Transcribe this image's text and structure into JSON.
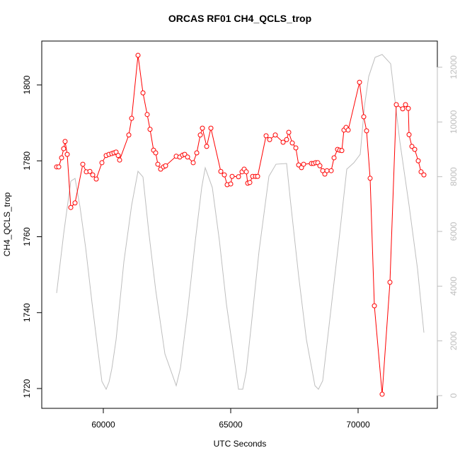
{
  "chart_data": {
    "type": "line",
    "title": "ORCAS RF01 CH4_QCLS_trop",
    "x_label": "UTC Seconds",
    "y_label": "CH4_QCLS_trop",
    "xlim": [
      57583,
      73111
    ],
    "xticks": [
      60000,
      65000,
      70000
    ],
    "ylim": [
      1714.78,
      1811.56
    ],
    "yticks": [
      1720,
      1740,
      1760,
      1780,
      1800
    ],
    "y2lim": [
      -465,
      12957
    ],
    "y2ticks": [
      0,
      2000,
      4000,
      6000,
      8000,
      10000,
      12000
    ],
    "series": [
      {
        "name": "CH4_QCLS_trop",
        "color": "#ff0000",
        "markers": true,
        "x": [
          58167,
          58250,
          58361,
          58444,
          58500,
          58583,
          58722,
          58889,
          59194,
          59333,
          59472,
          59583,
          59722,
          59944,
          60111,
          60222,
          60333,
          60417,
          60500,
          60583,
          60639,
          61000,
          61111,
          61361,
          61556,
          61722,
          61833,
          61972,
          62056,
          62139,
          62250,
          62361,
          62444,
          62861,
          63000,
          63111,
          63194,
          63306,
          63528,
          63667,
          63806,
          63889,
          64056,
          64222,
          64611,
          64750,
          64861,
          65000,
          65056,
          65306,
          65444,
          65528,
          65611,
          65667,
          65750,
          65861,
          65972,
          66056,
          66389,
          66528,
          66750,
          67056,
          67194,
          67278,
          67417,
          67556,
          67667,
          67778,
          67861,
          68167,
          68250,
          68333,
          68417,
          68500,
          68611,
          68694,
          68778,
          68944,
          69056,
          69194,
          69278,
          69361,
          69444,
          69528,
          69611,
          70056,
          70222,
          70333,
          70472,
          70639,
          70944,
          71250,
          71500,
          71750,
          71861,
          71972,
          72000,
          72111,
          72222,
          72361,
          72472,
          72583
        ],
        "values": [
          1778.4,
          1778.4,
          1780.8,
          1783.2,
          1785.1,
          1781.7,
          1767.7,
          1768.9,
          1779.1,
          1777.1,
          1777.2,
          1776.3,
          1775.2,
          1779.5,
          1781.4,
          1781.7,
          1781.9,
          1782.1,
          1782.3,
          1781.4,
          1780.2,
          1786.8,
          1791.2,
          1807.8,
          1797.9,
          1792.2,
          1788.3,
          1782.8,
          1782.1,
          1779.1,
          1777.8,
          1778.4,
          1778.7,
          1781.2,
          1781.0,
          1781.5,
          1781.7,
          1781.0,
          1779.5,
          1782.1,
          1786.8,
          1788.6,
          1783.8,
          1788.6,
          1777.2,
          1776.3,
          1773.7,
          1773.9,
          1775.9,
          1775.8,
          1777.1,
          1777.8,
          1777.1,
          1774.1,
          1774.3,
          1775.9,
          1775.9,
          1775.9,
          1786.6,
          1785.6,
          1786.8,
          1784.9,
          1785.6,
          1787.5,
          1784.7,
          1783.4,
          1778.9,
          1778.2,
          1779.1,
          1779.3,
          1779.3,
          1779.5,
          1779.5,
          1778.7,
          1777.4,
          1776.5,
          1777.4,
          1777.4,
          1780.8,
          1783.0,
          1782.8,
          1782.7,
          1788.1,
          1788.8,
          1788.1,
          1800.7,
          1791.6,
          1787.9,
          1775.4,
          1741.8,
          1718.5,
          1748.0,
          1794.8,
          1793.7,
          1794.8,
          1793.8,
          1786.9,
          1783.8,
          1783.0,
          1780.0,
          1777.1,
          1776.3
        ]
      },
      {
        "color": "#bebebe",
        "axis": "y2",
        "markers": false,
        "x": [
          58167,
          58444,
          58722,
          58889,
          59083,
          59306,
          59556,
          59806,
          59944,
          60111,
          60222,
          60333,
          60500,
          60806,
          61111,
          61361,
          61556,
          61778,
          62056,
          62417,
          62861,
          63028,
          63306,
          63611,
          63861,
          64000,
          64278,
          64556,
          64833,
          65111,
          65306,
          65472,
          65611,
          65806,
          66111,
          66500,
          66778,
          67194,
          67333,
          67667,
          67972,
          68306,
          68444,
          68611,
          68861,
          69278,
          69556,
          69833,
          70083,
          70250,
          70417,
          70667,
          70944,
          71278,
          71639,
          72000,
          72333,
          72583
        ],
        "values": [
          3750,
          5922,
          7836,
          7939,
          6905,
          5405,
          3388,
          1526,
          517,
          233,
          491,
          983,
          2043,
          4888,
          6957,
          8198,
          7991,
          6025,
          3853,
          1526,
          362,
          1009,
          3077,
          5663,
          7603,
          8327,
          7603,
          5663,
          3336,
          1526,
          233,
          233,
          879,
          2560,
          5275,
          8017,
          8456,
          8482,
          7215,
          4370,
          2043,
          362,
          233,
          543,
          2560,
          5922,
          8275,
          8508,
          8818,
          10577,
          11663,
          12361,
          12465,
          12128,
          9284,
          6957,
          4629,
          2302
        ]
      }
    ]
  }
}
